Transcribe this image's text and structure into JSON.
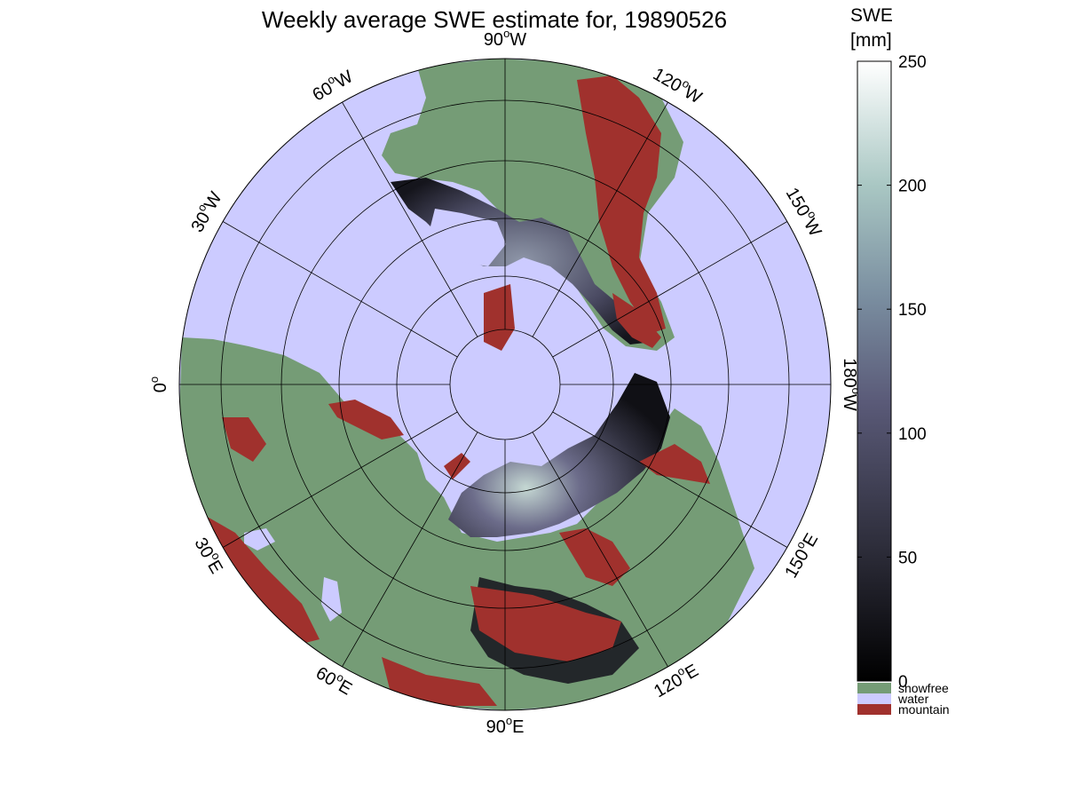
{
  "title": "Weekly average SWE estimate for, 19890526",
  "map": {
    "colors": {
      "water": "#cccbff",
      "snowfree": "#759c76",
      "mountain": "#a0312d",
      "snow_dark": "#1a1a20",
      "snow_mid": "#4d4d68",
      "snow_light": "#a8c0bd",
      "grid": "#000000"
    },
    "longitude_labels": [
      {
        "text": "90",
        "suffix": "W"
      },
      {
        "text": "120",
        "suffix": "W"
      },
      {
        "text": "150",
        "suffix": "W"
      },
      {
        "text": "180",
        "suffix": "W"
      },
      {
        "text": "150",
        "suffix": "E"
      },
      {
        "text": "120",
        "suffix": "E"
      },
      {
        "text": "90",
        "suffix": "E"
      },
      {
        "text": "60",
        "suffix": "E"
      },
      {
        "text": "30",
        "suffix": "E"
      },
      {
        "text": "0",
        "suffix": ""
      },
      {
        "text": "30",
        "suffix": "W"
      },
      {
        "text": "60",
        "suffix": "W"
      }
    ]
  },
  "colorbar": {
    "label_line1": "SWE",
    "label_line2": "[mm]",
    "ticks": [
      "0",
      "50",
      "100",
      "150",
      "200",
      "250"
    ],
    "range": [
      0,
      250
    ],
    "legend": [
      {
        "label": "snowfree",
        "color": "#759c76"
      },
      {
        "label": "water",
        "color": "#cccbff"
      },
      {
        "label": "mountain",
        "color": "#a0312d"
      }
    ]
  }
}
